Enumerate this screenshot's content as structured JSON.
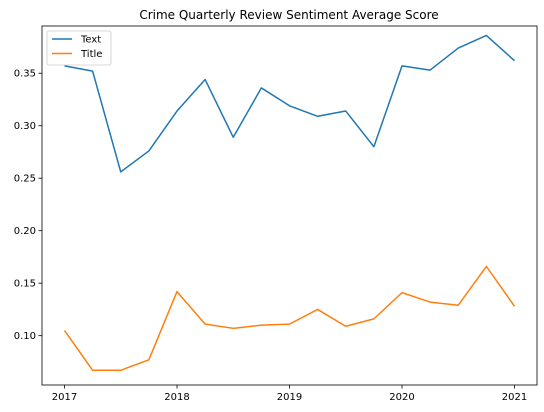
{
  "chart_data": {
    "type": "line",
    "title": "Crime Quarterly Review Sentiment Average Score",
    "xlabel": "",
    "ylabel": "",
    "x": [
      2017.0,
      2017.25,
      2017.5,
      2017.75,
      2018.0,
      2018.25,
      2018.5,
      2018.75,
      2019.0,
      2019.25,
      2019.5,
      2019.75,
      2020.0,
      2020.25,
      2020.5,
      2020.75,
      2021.0
    ],
    "xlim": [
      2016.8,
      2021.2
    ],
    "ylim": [
      0.053,
      0.395
    ],
    "xticks": [
      2017,
      2018,
      2019,
      2020,
      2021
    ],
    "xtick_labels": [
      "2017",
      "2018",
      "2019",
      "2020",
      "2021"
    ],
    "yticks": [
      0.1,
      0.15,
      0.2,
      0.25,
      0.3,
      0.35
    ],
    "ytick_labels": [
      "0.10",
      "0.15",
      "0.20",
      "0.25",
      "0.30",
      "0.35"
    ],
    "grid": false,
    "legend_position": "top-left",
    "series": [
      {
        "name": "Text",
        "color": "#1f77b4",
        "values": [
          0.357,
          0.352,
          0.256,
          0.276,
          0.314,
          0.344,
          0.289,
          0.336,
          0.319,
          0.309,
          0.314,
          0.28,
          0.357,
          0.353,
          0.374,
          0.386,
          0.362
        ]
      },
      {
        "name": "Title",
        "color": "#ff7f0e",
        "values": [
          0.105,
          0.067,
          0.067,
          0.077,
          0.142,
          0.111,
          0.107,
          0.11,
          0.111,
          0.125,
          0.109,
          0.116,
          0.141,
          0.132,
          0.129,
          0.166,
          0.128
        ]
      }
    ]
  }
}
